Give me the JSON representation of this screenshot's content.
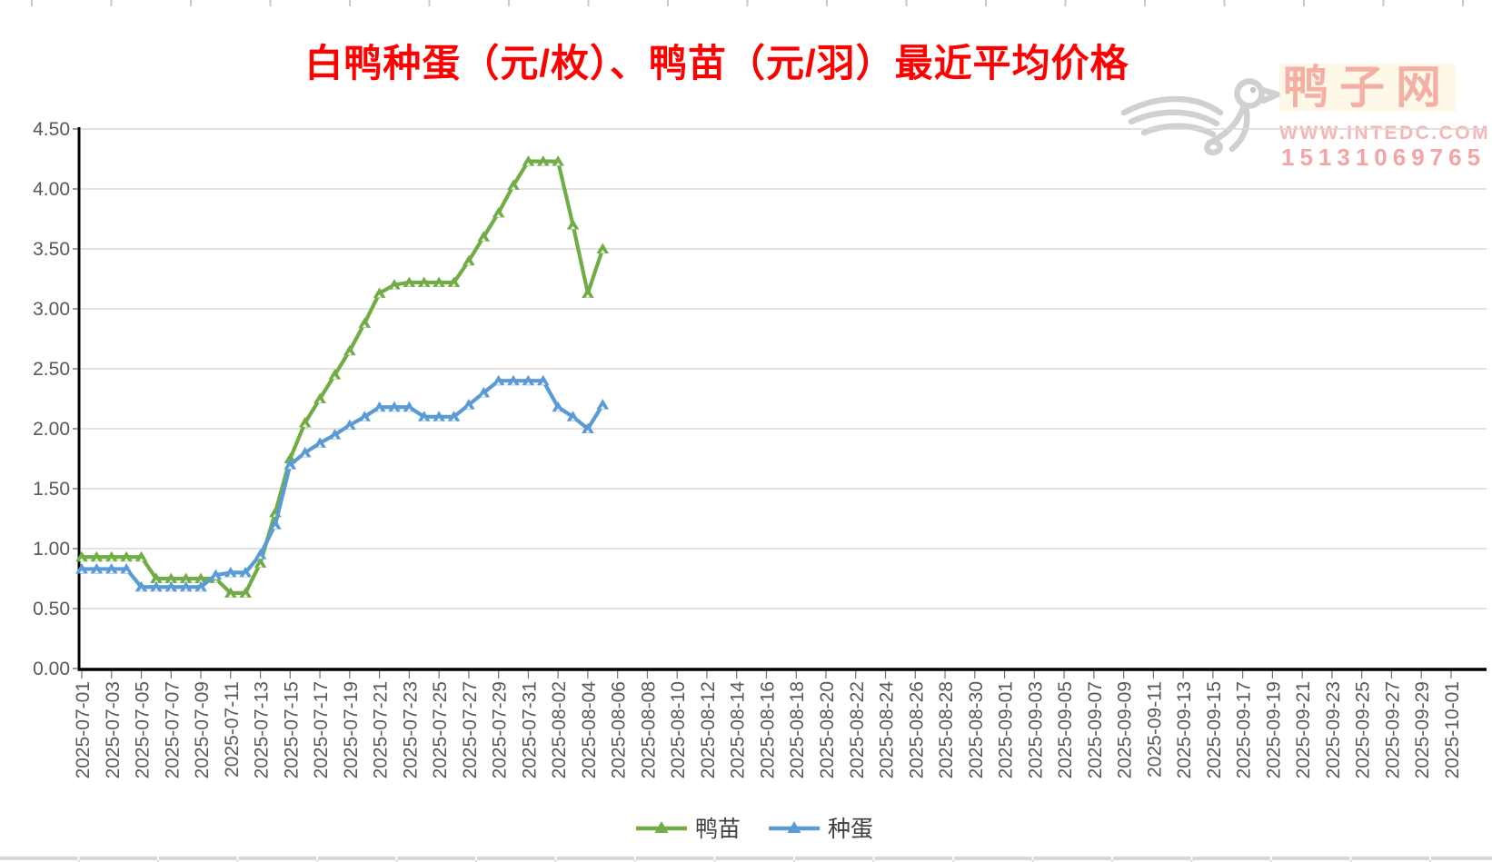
{
  "title": "白鸭种蛋（元/枚）、鸭苗（元/羽）最近平均价格",
  "watermark": {
    "logo": "duck-logo",
    "site_name": "鸭子网",
    "url": "WWW.INTEDC.COM",
    "phone": "15131069765"
  },
  "chart_data": {
    "type": "line",
    "title": "白鸭种蛋（元/枚）、鸭苗（元/羽）最近平均价格",
    "xlabel": "",
    "ylabel": "",
    "ylim": [
      0,
      4.5
    ],
    "ytick_step": 0.5,
    "y_tick_labels": [
      "0.00",
      "0.50",
      "1.00",
      "1.50",
      "2.00",
      "2.50",
      "3.00",
      "3.50",
      "4.00",
      "4.50"
    ],
    "grid": true,
    "legend_position": "bottom",
    "axis_end_date": "2025-10-01",
    "x_tick_labels": [
      "2025-07-01",
      "2025-07-03",
      "2025-07-05",
      "2025-07-07",
      "2025-07-09",
      "2025-07-11",
      "2025-07-13",
      "2025-07-15",
      "2025-07-17",
      "2025-07-19",
      "2025-07-21",
      "2025-07-23",
      "2025-07-25",
      "2025-07-27",
      "2025-07-29",
      "2025-07-31",
      "2025-08-02",
      "2025-08-04",
      "2025-08-06",
      "2025-08-08",
      "2025-08-10",
      "2025-08-12",
      "2025-08-14",
      "2025-08-16",
      "2025-08-18",
      "2025-08-20",
      "2025-08-22",
      "2025-08-24",
      "2025-08-26",
      "2025-08-28",
      "2025-08-30",
      "2025-09-01",
      "2025-09-03",
      "2025-09-05",
      "2025-09-07",
      "2025-09-09",
      "2025-09-11",
      "2025-09-13",
      "2025-09-15",
      "2025-09-17",
      "2025-09-19",
      "2025-09-21",
      "2025-09-23",
      "2025-09-25",
      "2025-09-27",
      "2025-09-29",
      "2025-10-01"
    ],
    "dates": [
      "2025-07-01",
      "2025-07-02",
      "2025-07-03",
      "2025-07-04",
      "2025-07-05",
      "2025-07-06",
      "2025-07-07",
      "2025-07-08",
      "2025-07-09",
      "2025-07-10",
      "2025-07-11",
      "2025-07-12",
      "2025-07-13",
      "2025-07-14",
      "2025-07-15",
      "2025-07-16",
      "2025-07-17",
      "2025-07-18",
      "2025-07-19",
      "2025-07-20",
      "2025-07-21",
      "2025-07-22",
      "2025-07-23",
      "2025-07-24",
      "2025-07-25",
      "2025-07-26",
      "2025-07-27",
      "2025-07-28",
      "2025-07-29",
      "2025-07-30",
      "2025-07-31",
      "2025-08-01",
      "2025-08-02",
      "2025-08-03",
      "2025-08-04",
      "2025-08-05"
    ],
    "series": [
      {
        "name": "鸭苗",
        "unit": "元/羽",
        "color": "#70AD47",
        "values": [
          0.93,
          0.93,
          0.93,
          0.93,
          0.93,
          0.75,
          0.75,
          0.75,
          0.75,
          0.75,
          0.63,
          0.63,
          0.88,
          1.3,
          1.75,
          2.05,
          2.25,
          2.45,
          2.65,
          2.88,
          3.13,
          3.2,
          3.22,
          3.22,
          3.22,
          3.22,
          3.4,
          3.6,
          3.8,
          4.03,
          4.23,
          4.23,
          4.23,
          3.7,
          3.13,
          3.5
        ]
      },
      {
        "name": "种蛋",
        "unit": "元/枚",
        "color": "#5B9BD5",
        "values": [
          0.83,
          0.83,
          0.83,
          0.83,
          0.68,
          0.68,
          0.68,
          0.68,
          0.68,
          0.78,
          0.8,
          0.8,
          0.95,
          1.2,
          1.7,
          1.8,
          1.88,
          1.95,
          2.03,
          2.1,
          2.18,
          2.18,
          2.18,
          2.1,
          2.1,
          2.1,
          2.2,
          2.3,
          2.4,
          2.4,
          2.4,
          2.4,
          2.18,
          2.1,
          2.0,
          2.2
        ]
      }
    ]
  }
}
